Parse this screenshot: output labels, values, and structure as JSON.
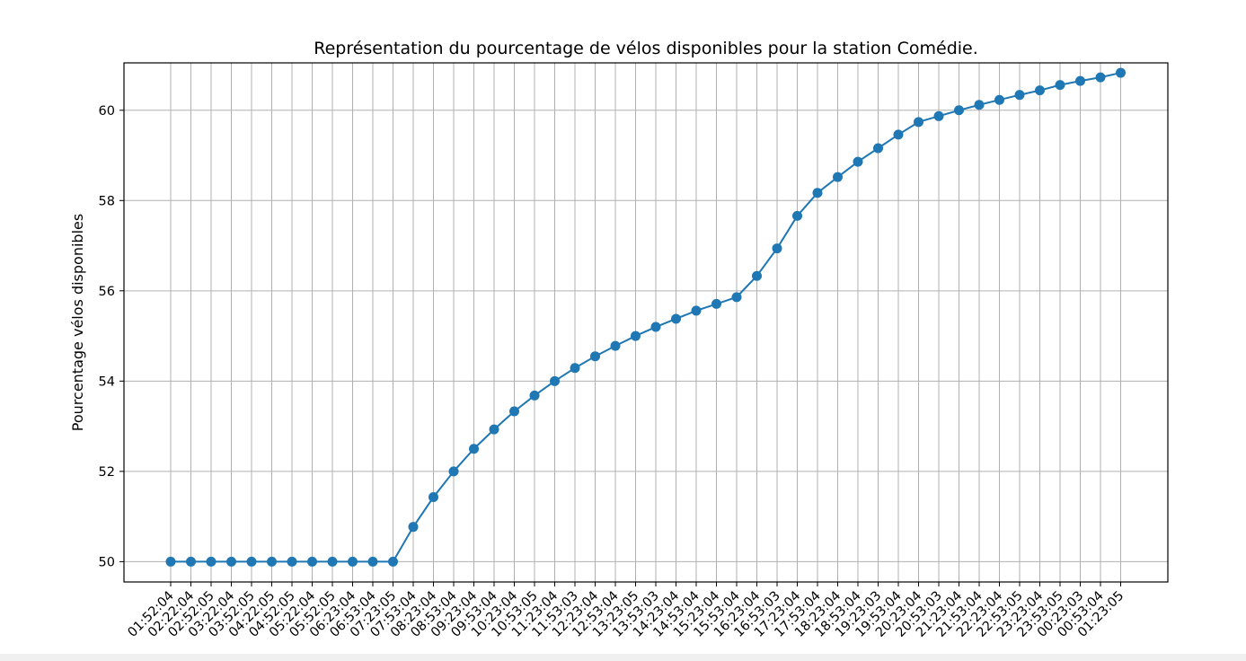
{
  "chart_data": {
    "type": "line",
    "title": "Représentation du pourcentage de vélos disponibles pour la station Comédie.",
    "xlabel": "",
    "ylabel": "Pourcentage vélos disponibles",
    "categories": [
      "01:52:04",
      "02:22:04",
      "02:52:05",
      "03:22:04",
      "03:52:05",
      "04:22:05",
      "04:52:05",
      "05:22:04",
      "05:52:05",
      "06:23:04",
      "06:53:04",
      "07:23:05",
      "07:53:04",
      "08:23:04",
      "08:53:04",
      "09:23:04",
      "09:53:04",
      "10:23:04",
      "10:53:05",
      "11:23:04",
      "11:53:03",
      "12:23:04",
      "12:53:04",
      "13:23:05",
      "13:53:03",
      "14:23:04",
      "14:53:04",
      "15:23:04",
      "15:53:04",
      "16:23:04",
      "16:53:03",
      "17:23:04",
      "17:53:04",
      "18:23:04",
      "18:53:04",
      "19:23:03",
      "19:53:04",
      "20:23:04",
      "20:53:03",
      "21:23:04",
      "21:53:04",
      "22:23:04",
      "22:53:05",
      "23:23:04",
      "23:53:05",
      "00:23:03",
      "00:53:04",
      "01:23:05"
    ],
    "series": [
      {
        "values": [
          50,
          50,
          50,
          50,
          50,
          50,
          50,
          50,
          50,
          50,
          50,
          50,
          50.77,
          51.43,
          52.0,
          52.5,
          52.93,
          53.33,
          53.68,
          54.0,
          54.29,
          54.55,
          54.78,
          55.0,
          55.2,
          55.38,
          55.56,
          55.71,
          55.86,
          56.33,
          56.94,
          57.66,
          58.17,
          58.52,
          58.86,
          59.16,
          59.46,
          59.74,
          59.87,
          60.0,
          60.12,
          60.23,
          60.34,
          60.44,
          60.56,
          60.65,
          60.73,
          60.83
        ],
        "color": "#1f77b4"
      }
    ],
    "yticks": [
      50,
      52,
      54,
      56,
      58,
      60
    ],
    "ylim": [
      49.55,
      61.05
    ],
    "grid": true,
    "legend": "none",
    "marker": "circle"
  }
}
